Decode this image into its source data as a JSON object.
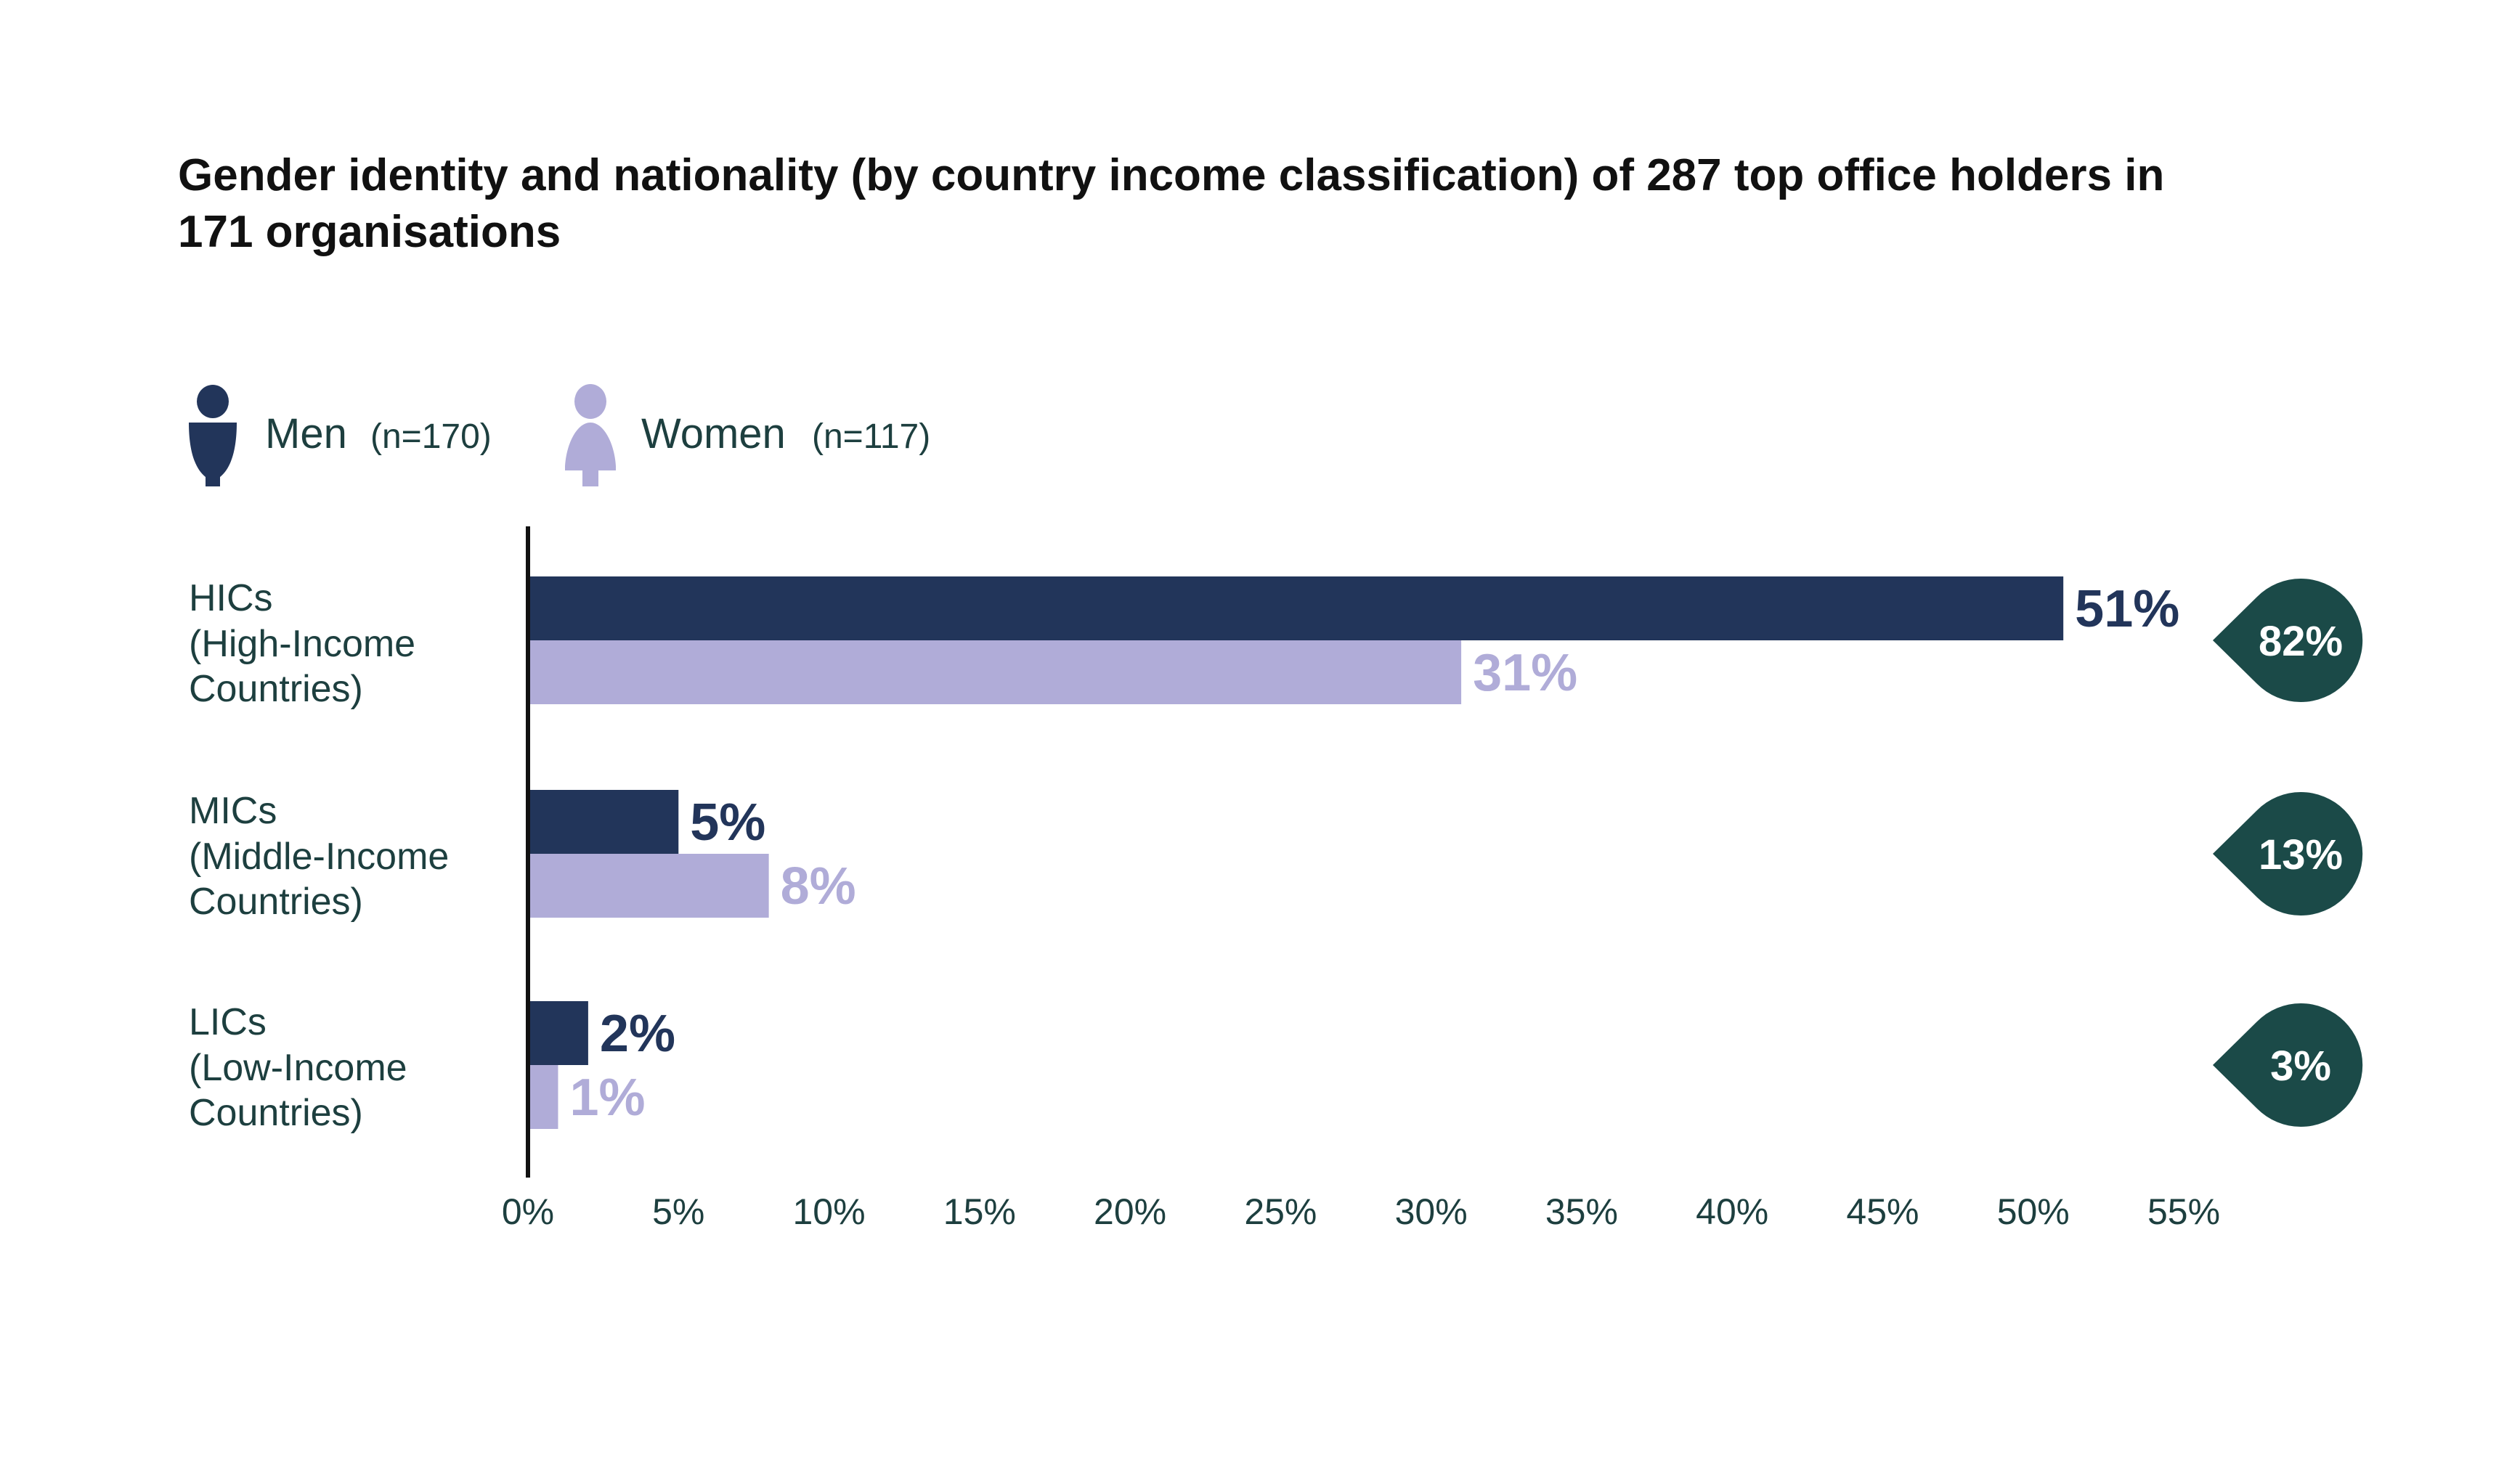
{
  "chart_data": {
    "type": "bar",
    "orientation": "horizontal",
    "title": "Gender identity and nationality (by country income classification) of 287 top office holders in 171 organisations",
    "title_lines": [
      "Gender identity and nationality (by country income classification) of 287 top office holders in",
      "171 organisations"
    ],
    "categories": [
      {
        "lines": [
          "HICs",
          "(High-Income",
          "Countries)"
        ],
        "total_label": "82%"
      },
      {
        "lines": [
          "MICs",
          "(Middle-Income",
          "Countries)"
        ],
        "total_label": "13%"
      },
      {
        "lines": [
          "LICs",
          "(Low-Income",
          "Countries)"
        ],
        "total_label": "3%"
      }
    ],
    "series": [
      {
        "name": "Men",
        "n_label": "(n=170)",
        "color": "#22355a",
        "values": [
          51,
          5,
          2
        ],
        "labels": [
          "51%",
          "5%",
          "2%"
        ]
      },
      {
        "name": "Women",
        "n_label": "(n=117)",
        "color": "#b0acd8",
        "values": [
          31,
          8,
          1
        ],
        "labels": [
          "31%",
          "8%",
          "1%"
        ]
      }
    ],
    "totals": [
      82,
      13,
      3
    ],
    "total_badge_color": "#1b4a48",
    "xlim": [
      0,
      55
    ],
    "xticks": [
      "0%",
      "5%",
      "10%",
      "15%",
      "20%",
      "25%",
      "30%",
      "35%",
      "40%",
      "45%",
      "50%",
      "55%"
    ],
    "xlabel": "",
    "ylabel": "",
    "grid": false,
    "legend_placement": "top-left"
  }
}
